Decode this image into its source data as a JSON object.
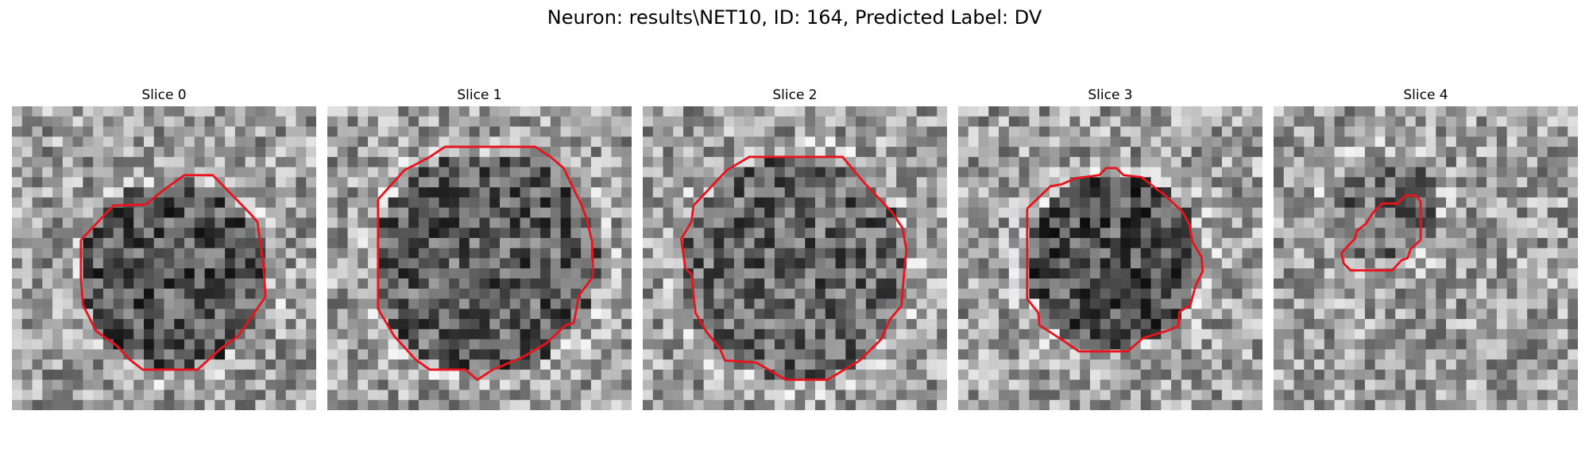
{
  "figure": {
    "title": "Neuron: results\\NET10, ID: 164, Predicted Label: DV",
    "contour_color": "#e8131c",
    "colormap": "gray",
    "axes_visible": false
  },
  "slices": [
    {
      "label": "Slice 0"
    },
    {
      "label": "Slice 1"
    },
    {
      "label": "Slice 2"
    },
    {
      "label": "Slice 3"
    },
    {
      "label": "Slice 4"
    }
  ]
}
